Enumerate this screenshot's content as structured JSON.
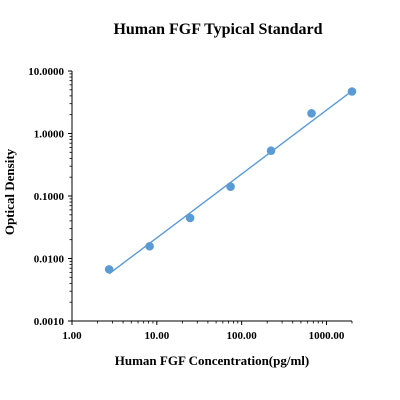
{
  "chart_data": {
    "type": "scatter",
    "title": "Human FGF Typical Standard",
    "xlabel": "Human FGF Concentration(pg/ml)",
    "ylabel": "Optical Density",
    "x_scale": "log",
    "y_scale": "log",
    "xlim": [
      1,
      2000
    ],
    "ylim": [
      0.001,
      10
    ],
    "x_ticks": [
      1,
      10,
      100,
      1000
    ],
    "x_tick_labels": [
      "1.00",
      "10.00",
      "100.00",
      "1000.00"
    ],
    "y_ticks": [
      0.001,
      0.01,
      0.1,
      1,
      10
    ],
    "y_tick_labels": [
      "0.0010",
      "0.0100",
      "0.1000",
      "1.0000",
      "10.0000"
    ],
    "grid": false,
    "series": [
      {
        "x": [
          2.74,
          8.23,
          24.69,
          74.07,
          222.2,
          666.7,
          2000
        ],
        "y": [
          0.0067,
          0.0157,
          0.0445,
          0.141,
          0.53,
          2.1,
          4.7
        ],
        "marker": "circle",
        "color": "#5b9bd5"
      }
    ],
    "fit_line": {
      "x": [
        2.74,
        2000
      ],
      "y": [
        0.0057,
        4.8
      ],
      "color": "#5b9bd5"
    }
  }
}
